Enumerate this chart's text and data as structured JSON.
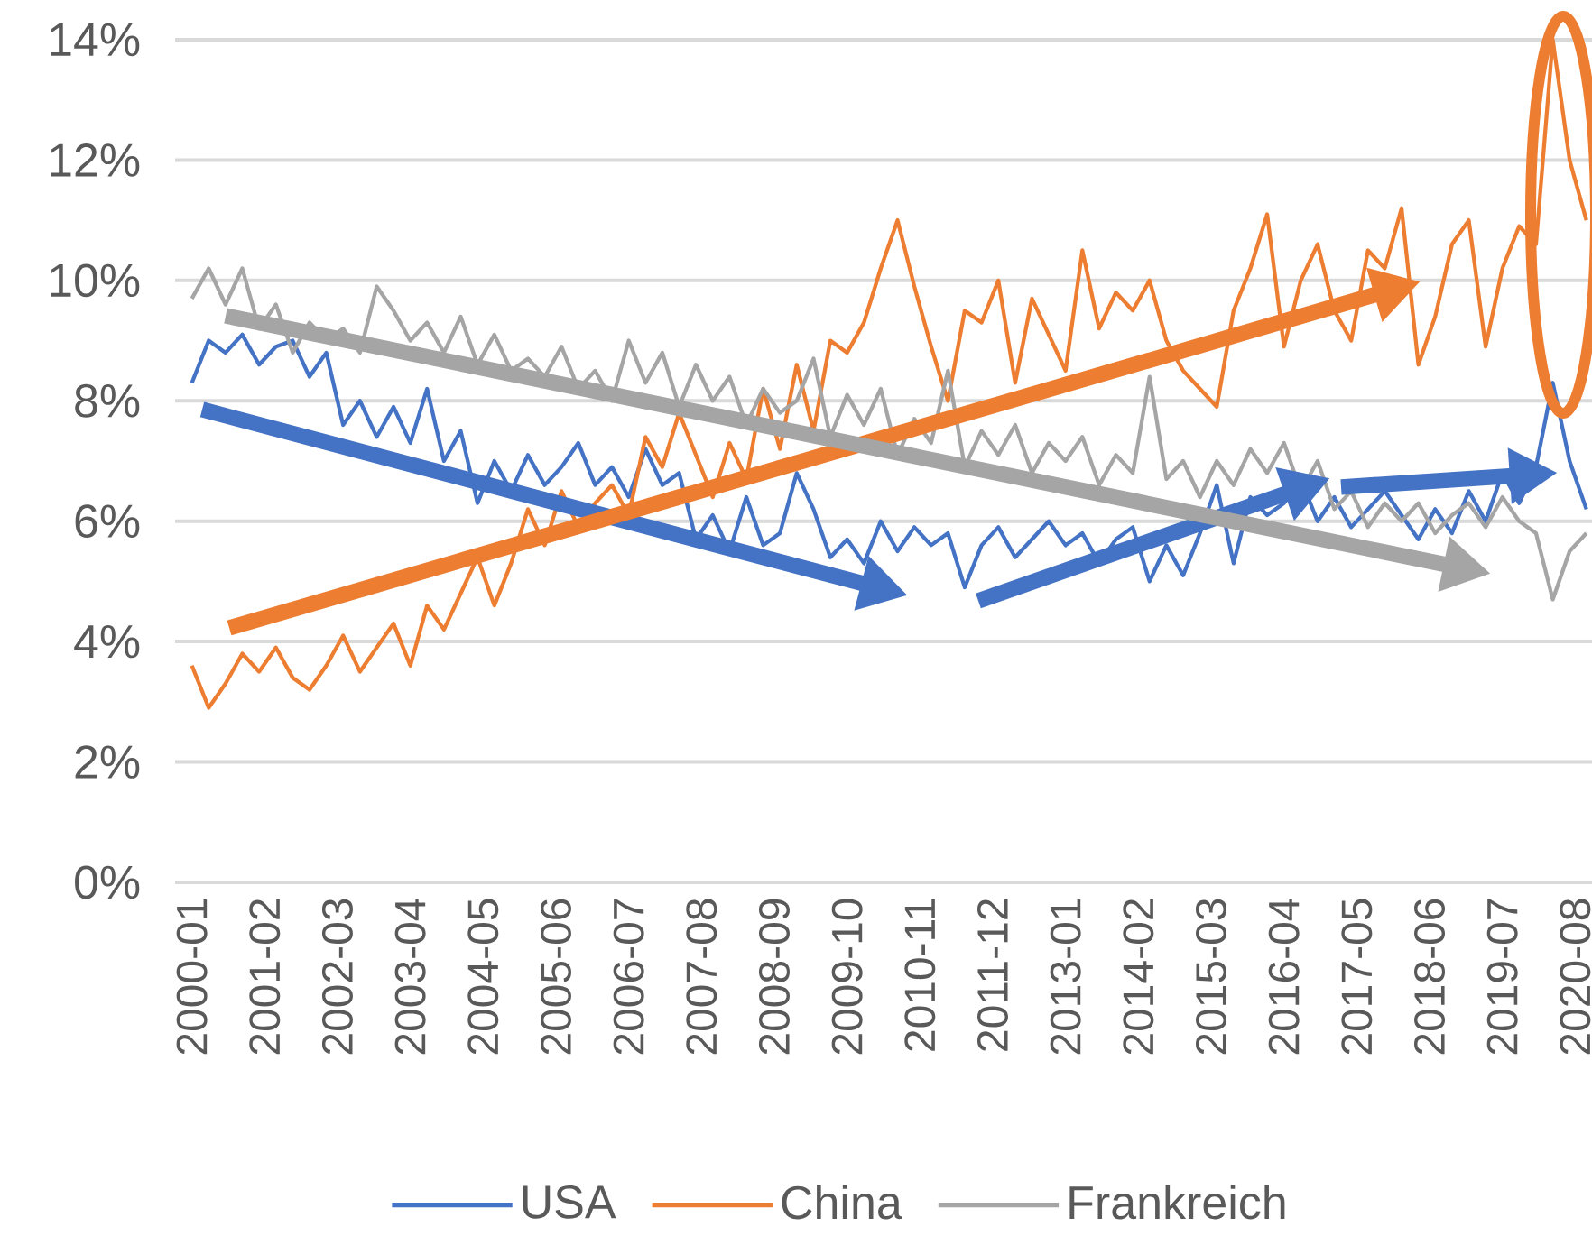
{
  "chart_data": {
    "type": "line",
    "x": [
      "2000-01",
      "2000-04",
      "2000-07",
      "2000-10",
      "2001-01",
      "2001-04",
      "2001-07",
      "2001-10",
      "2002-01",
      "2002-04",
      "2002-07",
      "2002-10",
      "2003-01",
      "2003-04",
      "2003-07",
      "2003-10",
      "2004-01",
      "2004-04",
      "2004-07",
      "2004-10",
      "2005-01",
      "2005-04",
      "2005-07",
      "2005-10",
      "2006-01",
      "2006-04",
      "2006-07",
      "2006-10",
      "2007-01",
      "2007-04",
      "2007-07",
      "2007-10",
      "2008-01",
      "2008-04",
      "2008-07",
      "2008-10",
      "2009-01",
      "2009-04",
      "2009-07",
      "2009-10",
      "2010-01",
      "2010-04",
      "2010-07",
      "2010-10",
      "2011-01",
      "2011-04",
      "2011-07",
      "2011-10",
      "2012-01",
      "2012-04",
      "2012-07",
      "2012-10",
      "2013-01",
      "2013-04",
      "2013-07",
      "2013-10",
      "2014-01",
      "2014-04",
      "2014-07",
      "2014-10",
      "2015-01",
      "2015-04",
      "2015-07",
      "2015-10",
      "2016-01",
      "2016-04",
      "2016-07",
      "2016-10",
      "2017-01",
      "2017-04",
      "2017-07",
      "2017-10",
      "2018-01",
      "2018-04",
      "2018-07",
      "2018-10",
      "2019-01",
      "2019-04",
      "2019-07",
      "2019-10",
      "2020-01",
      "2020-04",
      "2020-07",
      "2020-10"
    ],
    "series": [
      {
        "name": "USA",
        "color": "#4472c4",
        "values": [
          8.3,
          9.0,
          8.8,
          9.1,
          8.6,
          8.9,
          9.0,
          8.4,
          8.8,
          7.6,
          8.0,
          7.4,
          7.9,
          7.3,
          8.2,
          7.0,
          7.5,
          6.3,
          7.0,
          6.5,
          7.1,
          6.6,
          6.9,
          7.3,
          6.6,
          6.9,
          6.4,
          7.2,
          6.6,
          6.8,
          5.7,
          6.1,
          5.5,
          6.4,
          5.6,
          5.8,
          6.8,
          6.2,
          5.4,
          5.7,
          5.3,
          6.0,
          5.5,
          5.9,
          5.6,
          5.8,
          4.9,
          5.6,
          5.9,
          5.4,
          5.7,
          6.0,
          5.6,
          5.8,
          5.3,
          5.7,
          5.9,
          5.0,
          5.6,
          5.1,
          5.8,
          6.6,
          5.3,
          6.4,
          6.1,
          6.3,
          6.7,
          6.0,
          6.4,
          5.9,
          6.2,
          6.5,
          6.1,
          5.7,
          6.2,
          5.8,
          6.5,
          6.0,
          6.8,
          6.3,
          6.9,
          8.3,
          7.0,
          6.2
        ]
      },
      {
        "name": "China",
        "color": "#ed7d31",
        "values": [
          3.6,
          2.9,
          3.3,
          3.8,
          3.5,
          3.9,
          3.4,
          3.2,
          3.6,
          4.1,
          3.5,
          3.9,
          4.3,
          3.6,
          4.6,
          4.2,
          4.8,
          5.4,
          4.6,
          5.3,
          6.2,
          5.6,
          6.5,
          5.9,
          6.3,
          6.6,
          6.1,
          7.4,
          6.9,
          7.8,
          7.1,
          6.4,
          7.3,
          6.7,
          8.2,
          7.2,
          8.6,
          7.5,
          9.0,
          8.8,
          9.3,
          10.2,
          11.0,
          9.9,
          8.9,
          8.0,
          9.5,
          9.3,
          10.0,
          8.3,
          9.7,
          9.1,
          8.5,
          10.5,
          9.2,
          9.8,
          9.5,
          10.0,
          9.0,
          8.5,
          8.2,
          7.9,
          9.5,
          10.2,
          11.1,
          8.9,
          10.0,
          10.6,
          9.5,
          9.0,
          10.5,
          10.2,
          11.2,
          8.6,
          9.4,
          10.6,
          11.0,
          8.9,
          10.2,
          10.9,
          10.6,
          14.0,
          12.0,
          11.0
        ]
      },
      {
        "name": "Frankreich",
        "color": "#a5a5a5",
        "values": [
          9.7,
          10.2,
          9.6,
          10.2,
          9.2,
          9.6,
          8.8,
          9.3,
          9.0,
          9.2,
          8.8,
          9.9,
          9.5,
          9.0,
          9.3,
          8.8,
          9.4,
          8.6,
          9.1,
          8.5,
          8.7,
          8.4,
          8.9,
          8.2,
          8.5,
          8.0,
          9.0,
          8.3,
          8.8,
          7.9,
          8.6,
          8.0,
          8.4,
          7.6,
          8.2,
          7.8,
          8.0,
          8.7,
          7.4,
          8.1,
          7.6,
          8.2,
          7.1,
          7.7,
          7.3,
          8.5,
          6.9,
          7.5,
          7.1,
          7.6,
          6.8,
          7.3,
          7.0,
          7.4,
          6.6,
          7.1,
          6.8,
          8.4,
          6.7,
          7.0,
          6.4,
          7.0,
          6.6,
          7.2,
          6.8,
          7.3,
          6.5,
          7.0,
          6.2,
          6.5,
          5.9,
          6.3,
          6.0,
          6.3,
          5.8,
          6.1,
          6.3,
          5.9,
          6.4,
          6.0,
          5.8,
          4.7,
          5.5,
          5.8
        ]
      }
    ],
    "xlim": [
      "1999-10",
      "2020-11"
    ],
    "xticks": [
      "2000-01",
      "2001-02",
      "2002-03",
      "2003-04",
      "2004-05",
      "2005-06",
      "2006-07",
      "2007-08",
      "2008-09",
      "2009-10",
      "2010-11",
      "2011-12",
      "2013-01",
      "2014-02",
      "2015-03",
      "2016-04",
      "2017-05",
      "2018-06",
      "2019-07",
      "2020-08"
    ],
    "ylim": [
      0,
      14
    ],
    "yticks": [
      {
        "value": 0,
        "label": "0%"
      },
      {
        "value": 2,
        "label": "2%"
      },
      {
        "value": 4,
        "label": "4%"
      },
      {
        "value": 6,
        "label": "6%"
      },
      {
        "value": 8,
        "label": "8%"
      },
      {
        "value": 10,
        "label": "10%"
      },
      {
        "value": 12,
        "label": "12%"
      },
      {
        "value": 14,
        "label": "14%"
      }
    ],
    "grid": "y",
    "legend": "bottom"
  }
}
